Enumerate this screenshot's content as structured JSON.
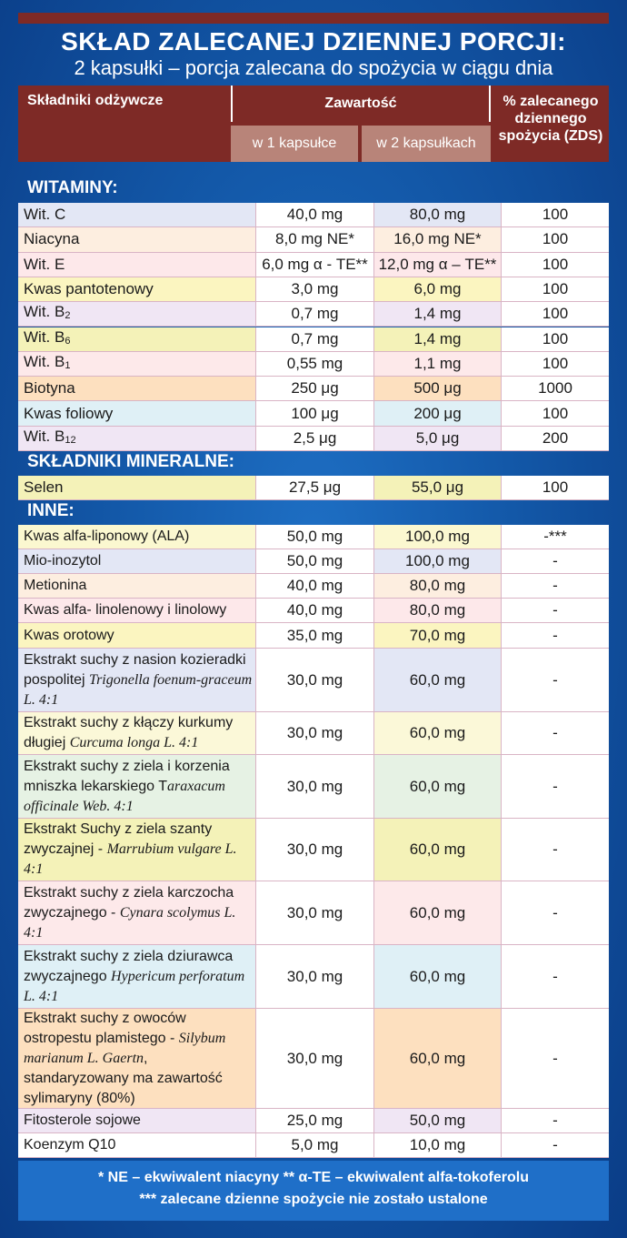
{
  "title": "SKŁAD ZALECANEJ DZIENNEJ PORCJI:",
  "subtitle": "2 kapsułki – porcja zalecana do spożycia w ciągu dnia",
  "header": {
    "ingredients": "Składniki odżywcze",
    "content": "Zawartość",
    "per1": "w 1 kapsułce",
    "per2": "w 2 kapsułkach",
    "pct_line1": "% zalecanego",
    "pct_line2": "dziennego",
    "pct_line3": "spożycia (ZDS)"
  },
  "sections": {
    "vitamins": "WITAMINY:",
    "minerals": "SKŁADNIKI MINERALNE:",
    "other": "INNE:"
  },
  "vitamins": [
    {
      "name": "Wit. C",
      "sub": "",
      "v1": "40,0 mg",
      "v2": "80,0 mg",
      "pct": "100",
      "color": "#e3e7f5"
    },
    {
      "name": "Niacyna",
      "sub": "",
      "v1": "8,0 mg NE*",
      "v2": "16,0 mg NE*",
      "pct": "100",
      "color": "#fdeee0"
    },
    {
      "name": "Wit. E",
      "sub": "",
      "v1": "6,0 mg α - TE**",
      "v2": "12,0 mg α – TE**",
      "pct": "100",
      "color": "#fde8ea"
    },
    {
      "name": "Kwas pantotenowy",
      "sub": "",
      "v1": "3,0 mg",
      "v2": "6,0 mg",
      "pct": "100",
      "color": "#fbf5c0"
    },
    {
      "name": "Wit. B",
      "sub": "2",
      "v1": "0,7 mg",
      "v2": "1,4 mg",
      "pct": "100",
      "color": "#f0e6f4"
    },
    {
      "name": "Wit. B",
      "sub": "6",
      "v1": "0,7 mg",
      "v2": "1,4 mg",
      "pct": "100",
      "color": "#f4f2b8"
    },
    {
      "name": "Wit. B",
      "sub": "1",
      "v1": "0,55 mg",
      "v2": "1,1 mg",
      "pct": "100",
      "color": "#fde9ea"
    },
    {
      "name": "Biotyna",
      "sub": "",
      "v1": "250 μg",
      "v2": "500 μg",
      "pct": "1000",
      "color": "#fde0bf"
    },
    {
      "name": "Kwas foliowy",
      "sub": "",
      "v1": "100 μg",
      "v2": "200 μg",
      "pct": "100",
      "color": "#dff0f6"
    },
    {
      "name": "Wit. B",
      "sub": "12",
      "v1": "2,5 μg",
      "v2": "5,0 μg",
      "pct": "200",
      "color": "#f0e6f4"
    }
  ],
  "minerals": [
    {
      "name": "Selen",
      "sub": "",
      "v1": "27,5 μg",
      "v2": "55,0 μg",
      "pct": "100",
      "color": "#f4f2b8"
    }
  ],
  "other": [
    {
      "name": "Kwas alfa-liponowy (ALA)",
      "v1": "50,0 mg",
      "v2": "100,0 mg",
      "pct": "-***",
      "color": "#fbf8d0",
      "h": 27
    },
    {
      "name": "Mio-inozytol",
      "v1": "50,0 mg",
      "v2": "100,0 mg",
      "pct": "-",
      "color": "#e3e7f5",
      "h": 27
    },
    {
      "name": "Metionina",
      "v1": "40,0 mg",
      "v2": "80,0 mg",
      "pct": "-",
      "color": "#fdeee0",
      "h": 27
    },
    {
      "name": "Kwas alfa- linolenowy i linolowy",
      "v1": "40,0 mg",
      "v2": "80,0 mg",
      "pct": "-",
      "color": "#fde8ea",
      "h": 27
    },
    {
      "name": "Kwas orotowy",
      "v1": "35,0 mg",
      "v2": "70,0 mg",
      "pct": "-",
      "color": "#fbf5c0",
      "h": 28
    },
    {
      "name": "Ekstrakt suchy z nasion kozieradki pospolitej ",
      "latin": "Trigonella foenum-graceum L. 4:1",
      "v1": "30,0 mg",
      "v2": "60,0 mg",
      "pct": "-",
      "color": "#e3e7f5",
      "h": 70
    },
    {
      "name": "Ekstrakt suchy z kłączy kurkumy długiej ",
      "latin": "Curcuma longa L. 4:1",
      "v1": "30,0 mg",
      "v2": "60,0 mg",
      "pct": "-",
      "color": "#fbf8d8",
      "h": 47
    },
    {
      "name": "Ekstrakt suchy z ziela i korzenia mniszka lekarskiego T",
      "latin": "araxacum officinale Web. 4:1",
      "v1": "30,0 mg",
      "v2": "60,0 mg",
      "pct": "-",
      "color": "#e6f2e4",
      "h": 70
    },
    {
      "name": "Ekstrakt Suchy z ziela szanty zwyczajnej - ",
      "latin": "Marrubium vulgare L. 4:1",
      "v1": "30,0 mg",
      "v2": "60,0 mg",
      "pct": "-",
      "color": "#f4f2b8",
      "h": 69
    },
    {
      "name": "Ekstrakt suchy z ziela karczocha zwyczajnego - ",
      "latin": "Cynara scolymus L. 4:1",
      "v1": "30,0 mg",
      "v2": "60,0 mg",
      "pct": "-",
      "color": "#fde9ea",
      "h": 70
    },
    {
      "name": "Ekstrakt suchy z ziela dziurawca zwyczajnego ",
      "latin": "Hypericum perforatum L. 4:1",
      "v1": "30,0 mg",
      "v2": "60,0 mg",
      "pct": "-",
      "color": "#dff0f6",
      "h": 70
    },
    {
      "name": "Ekstrakt suchy z owoców ostropestu plamistego - ",
      "latin": "Silybum marianum L. Gaertn",
      "tail": ", standaryzowany ma zawartość sylimaryny (80%)",
      "v1": "30,0 mg",
      "v2": "60,0 mg",
      "pct": "-",
      "color": "#fde0bf",
      "h": 110
    },
    {
      "name": "Fitosterole sojowe",
      "v1": "25,0 mg",
      "v2": "50,0 mg",
      "pct": "-",
      "color": "#f0e6f4",
      "h": 27
    },
    {
      "name": "Koenzym Q10",
      "v1": "5,0 mg",
      "v2": "10,0 mg",
      "pct": "-",
      "color": "#ffffff",
      "h": 27
    }
  ],
  "footer": {
    "line1": "* NE – ekwiwalent niacyny     ** α-TE – ekwiwalent alfa-tokoferolu",
    "line2": "*** zalecane dzienne spożycie nie zostało ustalone"
  }
}
